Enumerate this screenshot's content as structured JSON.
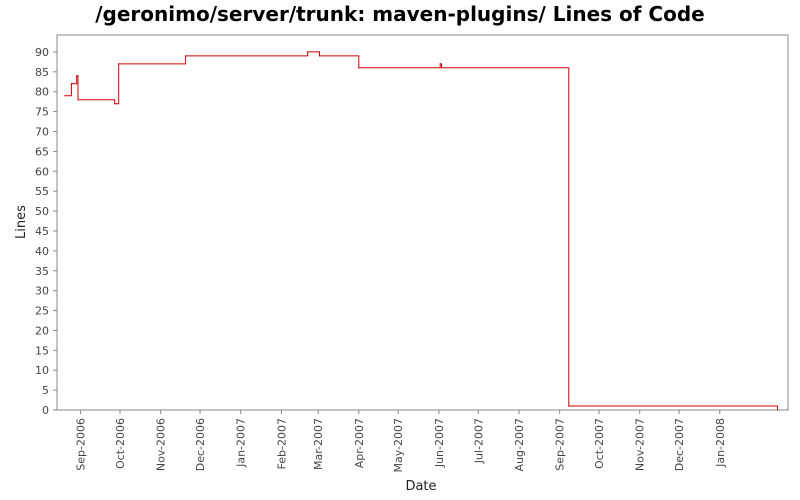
{
  "chart_data": {
    "type": "line",
    "title": "/geronimo/server/trunk: maven-plugins/ Lines of Code",
    "xlabel": "Date",
    "ylabel": "Lines",
    "ylim": [
      0,
      93
    ],
    "xlim": [
      "2006-08-14",
      "2008-02-22"
    ],
    "yticks": [
      0,
      5,
      10,
      15,
      20,
      25,
      30,
      35,
      40,
      45,
      50,
      55,
      60,
      65,
      70,
      75,
      80,
      85,
      90
    ],
    "xticks": [
      {
        "date": "2006-09-01",
        "label": "Sep-2006"
      },
      {
        "date": "2006-10-01",
        "label": "Oct-2006"
      },
      {
        "date": "2006-11-01",
        "label": "Nov-2006"
      },
      {
        "date": "2006-12-01",
        "label": "Dec-2006"
      },
      {
        "date": "2007-01-01",
        "label": "Jan-2007"
      },
      {
        "date": "2007-02-01",
        "label": "Feb-2007"
      },
      {
        "date": "2007-03-01",
        "label": "Mar-2007"
      },
      {
        "date": "2007-04-01",
        "label": "Apr-2007"
      },
      {
        "date": "2007-05-01",
        "label": "May-2007"
      },
      {
        "date": "2007-06-01",
        "label": "Jun-2007"
      },
      {
        "date": "2007-07-01",
        "label": "Jul-2007"
      },
      {
        "date": "2007-08-01",
        "label": "Aug-2007"
      },
      {
        "date": "2007-09-01",
        "label": "Sep-2007"
      },
      {
        "date": "2007-10-01",
        "label": "Oct-2007"
      },
      {
        "date": "2007-11-01",
        "label": "Nov-2007"
      },
      {
        "date": "2007-12-01",
        "label": "Dec-2007"
      },
      {
        "date": "2008-01-01",
        "label": "Jan-2008"
      }
    ],
    "grid": false,
    "series": [
      {
        "color": "#cc0000",
        "step": true,
        "points": [
          {
            "x": "2006-08-20",
            "y": 79
          },
          {
            "x": "2006-08-25",
            "y": 82
          },
          {
            "x": "2006-08-29",
            "y": 84
          },
          {
            "x": "2006-08-30",
            "y": 78
          },
          {
            "x": "2006-09-27",
            "y": 77
          },
          {
            "x": "2006-09-30",
            "y": 87
          },
          {
            "x": "2006-11-20",
            "y": 89
          },
          {
            "x": "2007-02-21",
            "y": 90
          },
          {
            "x": "2007-03-02",
            "y": 89
          },
          {
            "x": "2007-04-01",
            "y": 86
          },
          {
            "x": "2007-06-02",
            "y": 87
          },
          {
            "x": "2007-06-03",
            "y": 86
          },
          {
            "x": "2007-09-08",
            "y": 1
          },
          {
            "x": "2008-02-14",
            "y": 0
          }
        ]
      }
    ]
  }
}
